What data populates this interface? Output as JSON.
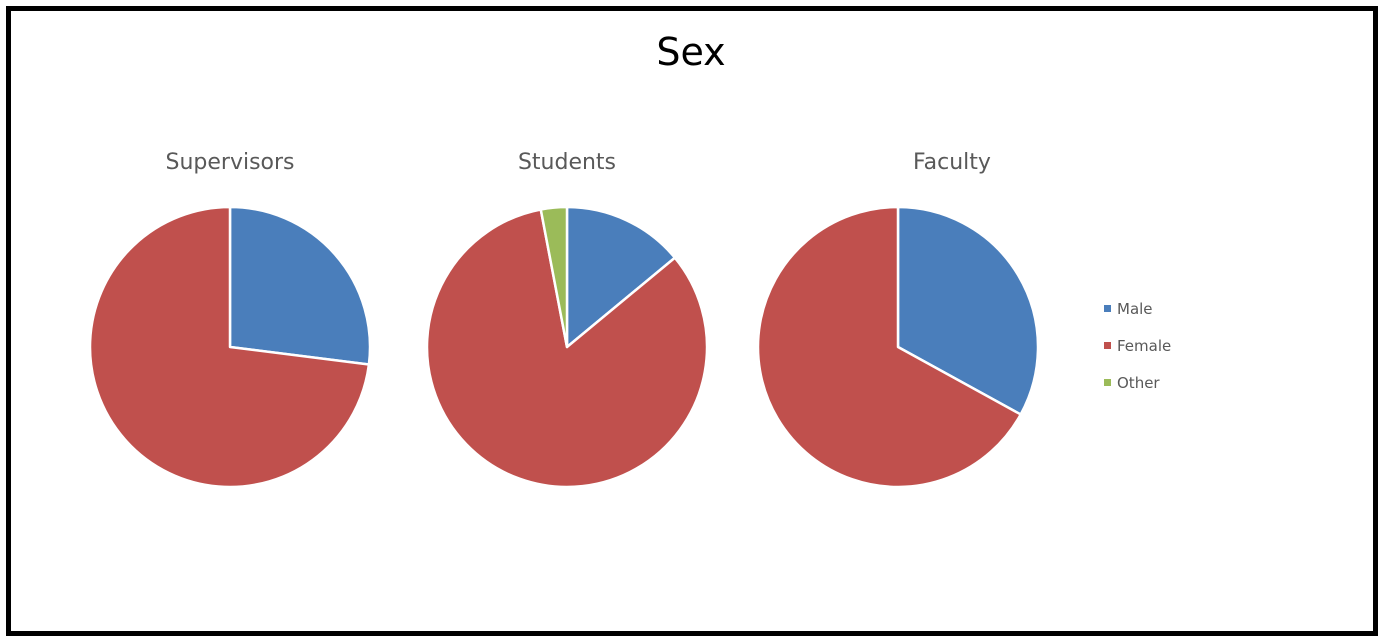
{
  "colors": {
    "male": "#4A7EBB",
    "female": "#C0504D",
    "other": "#9BBB59"
  },
  "chart_data": [
    {
      "type": "pie",
      "title": "Supervisors",
      "labels": [
        "Male",
        "Female",
        "Other"
      ],
      "values": [
        27,
        73,
        0
      ]
    },
    {
      "type": "pie",
      "title": "Students",
      "labels": [
        "Male",
        "Female",
        "Other"
      ],
      "values": [
        14,
        83,
        3
      ]
    },
    {
      "type": "pie",
      "title": "Faculty",
      "labels": [
        "Male",
        "Female",
        "Other"
      ],
      "values": [
        33,
        67,
        0
      ]
    }
  ],
  "figure": {
    "title": "Sex",
    "legend": {
      "position": "right",
      "entries": [
        "Male",
        "Female",
        "Other"
      ]
    }
  }
}
